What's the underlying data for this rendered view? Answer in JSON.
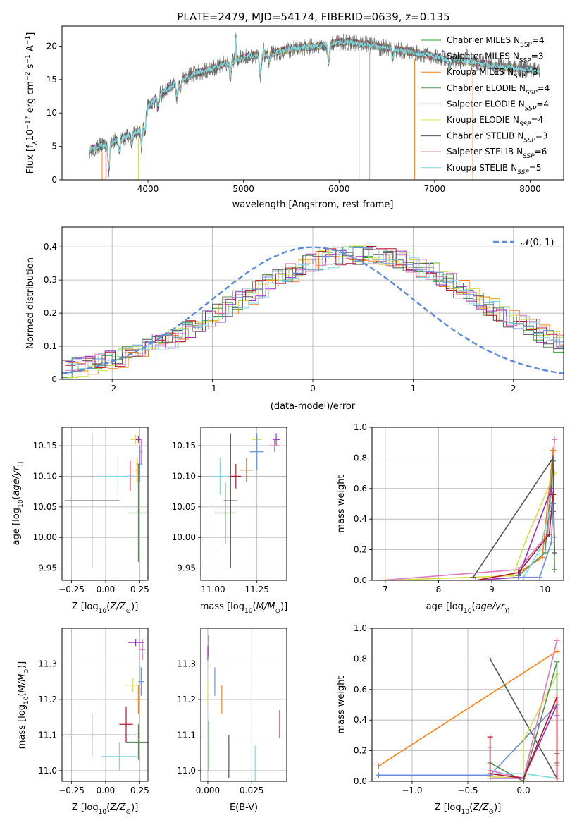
{
  "figure_title": "PLATE=2479, MJD=54174, FIBERID=0639, z=0.135",
  "colors": {
    "c0": "#2ca02c",
    "c1": "#e377c2",
    "c2": "#ff7f0e",
    "c3": "#5a8f5a",
    "c4": "#9b30c0",
    "c5": "#d4e04a",
    "c6": "#555555",
    "c7": "#b2182b",
    "c8": "#80d8e0",
    "c9": "#6a8fd8",
    "gauss": "#5b8bd8",
    "grid": "#b0b0b0"
  },
  "chart_data": [
    {
      "id": "spectrum",
      "type": "line",
      "title": "",
      "xlabel": "wavelength [Angstrom, rest frame]",
      "ylabel_parts": [
        "Flux [f",
        "λ",
        "10",
        "−17",
        " erg cm",
        "−2",
        " s",
        "−1",
        " A",
        "−1",
        "]"
      ],
      "xlim": [
        3100,
        8350
      ],
      "ylim": [
        0,
        23
      ],
      "xticks": [
        4000,
        5000,
        6000,
        7000,
        8000
      ],
      "yticks": [
        0,
        5,
        10,
        15,
        20
      ],
      "grid": false,
      "legend_position": "upper right",
      "series": [
        {
          "name": "Chabrier MILES",
          "n_ssp": "4",
          "color": "#2ca02c"
        },
        {
          "name": "Salpeter MILES",
          "n_ssp": "3",
          "color": "#e377c2"
        },
        {
          "name": "Kroupa MILES",
          "n_ssp": "3",
          "color": "#ff7f0e"
        },
        {
          "name": "Chabrier ELODIE",
          "n_ssp": "4",
          "color": "#5a8f5a"
        },
        {
          "name": "Salpeter ELODIE",
          "n_ssp": "4",
          "color": "#9b30c0"
        },
        {
          "name": "Kroupa ELODIE",
          "n_ssp": "4",
          "color": "#d4e04a"
        },
        {
          "name": "Chabrier STELIB",
          "n_ssp": "3",
          "color": "#555555"
        },
        {
          "name": "Salpeter STELIB",
          "n_ssp": "6",
          "color": "#b2182b"
        },
        {
          "name": "Kroupa STELIB",
          "n_ssp": "5",
          "color": "#80d8e0"
        }
      ],
      "n_ssp_label": "N",
      "n_ssp_sub": "SSP",
      "n_ssp_sub_italic": "SSP",
      "continuum_x": [
        3390,
        3500,
        3600,
        3700,
        3800,
        3900,
        3950,
        4000,
        4100,
        4200,
        4300,
        4400,
        4500,
        4600,
        4700,
        4800,
        4900,
        5000,
        5100,
        5200,
        5300,
        5400,
        5500,
        5600,
        5700,
        5800,
        5900,
        6000,
        6100,
        6200,
        6300,
        6400,
        6500,
        6600,
        6700,
        6800,
        6900,
        7000,
        7100,
        7200,
        7300,
        7400,
        7500,
        7600,
        7700,
        7800,
        7900,
        8000,
        8100
      ],
      "continuum_y": [
        4.5,
        5.0,
        5.5,
        6.0,
        6.5,
        7.2,
        8.5,
        11.0,
        12.5,
        13.5,
        14.5,
        15.3,
        16.0,
        16.3,
        16.8,
        17.3,
        17.8,
        18.3,
        18.6,
        18.6,
        18.9,
        19.3,
        19.6,
        19.8,
        19.9,
        20.0,
        20.3,
        20.6,
        20.6,
        20.4,
        20.2,
        19.9,
        19.7,
        19.5,
        19.2,
        19.0,
        18.7,
        18.4,
        18.1,
        17.9,
        17.8,
        17.6,
        17.4,
        17.1,
        16.9,
        16.8,
        16.6,
        16.5,
        16.2
      ],
      "dips": [
        [
          3590,
          -4.5
        ],
        [
          3700,
          -2.0
        ],
        [
          3830,
          -1.5
        ],
        [
          3933,
          -3.0
        ],
        [
          3968,
          -2.5
        ],
        [
          4102,
          -2.0
        ],
        [
          4305,
          -2.5
        ],
        [
          4340,
          -1.5
        ],
        [
          4861,
          -2.0
        ],
        [
          5175,
          -3.5
        ],
        [
          5270,
          -1.2
        ],
        [
          5890,
          -3.0
        ],
        [
          6563,
          -1.5
        ],
        [
          7160,
          -1.2
        ]
      ],
      "spikes": [
        [
          4920,
          4.0
        ],
        [
          5210,
          1.5
        ],
        [
          7340,
          1.5
        ]
      ],
      "vlines_x": [
        3520,
        3560,
        3900,
        6210,
        6320,
        6790,
        7400
      ],
      "vline_colors": [
        "#ff7f0e",
        "#b2182b",
        "#d4e04a",
        "#b0b0b0",
        "#b0b0b0",
        "#ff7f0e",
        "#ff7f0e"
      ]
    },
    {
      "id": "residuals",
      "type": "histogram",
      "title": "",
      "xlabel": "(data-model)/error",
      "ylabel": "Normed distribution",
      "xlim": [
        -2.5,
        2.5
      ],
      "ylim": [
        0,
        0.46
      ],
      "xticks": [
        -2,
        -1,
        0,
        1,
        2
      ],
      "yticks": [
        0.0,
        0.1,
        0.2,
        0.3,
        0.4
      ],
      "grid": true,
      "legend_position": "upper right",
      "legend_label": "𝒩(0, 1)",
      "bin_width": 0.1,
      "bin_start": -2.5,
      "shape": [
        0.035,
        0.039,
        0.045,
        0.051,
        0.058,
        0.066,
        0.075,
        0.085,
        0.097,
        0.109,
        0.122,
        0.137,
        0.152,
        0.168,
        0.185,
        0.202,
        0.22,
        0.238,
        0.256,
        0.274,
        0.291,
        0.308,
        0.323,
        0.337,
        0.349,
        0.359,
        0.367,
        0.372,
        0.375,
        0.376,
        0.375,
        0.372,
        0.367,
        0.359,
        0.349,
        0.337,
        0.323,
        0.308,
        0.291,
        0.274,
        0.256,
        0.238,
        0.22,
        0.202,
        0.185,
        0.168,
        0.152,
        0.137,
        0.122,
        0.109
      ],
      "jitter_seed": 7,
      "jitter_amp": 0.03
    },
    {
      "id": "age_vs_Z",
      "type": "errorbar",
      "title": "",
      "xlabel_parts": [
        "Z [log",
        "10",
        "(",
        "Z/Z",
        "⊙",
        ")]"
      ],
      "ylabel_parts": [
        "age  [log",
        "10",
        "(",
        "age/yr",
        ")]"
      ],
      "xlim": [
        -0.32,
        0.31
      ],
      "ylim": [
        9.93,
        10.18
      ],
      "xticks": [
        -0.25,
        0.0,
        0.25
      ],
      "xticklabels": [
        "−0.25",
        "0.00",
        "0.25"
      ],
      "yticks": [
        9.95,
        10.0,
        10.05,
        10.1,
        10.15
      ],
      "yticklabels": [
        "9.95",
        "10.00",
        "10.05",
        "10.10",
        "10.15"
      ],
      "grid": true,
      "points": [
        {
          "x": 0.22,
          "y": 10.16,
          "xerr": 0.04,
          "yerr": 0.008,
          "c": "#d4e04a"
        },
        {
          "x": 0.26,
          "y": 10.14,
          "xerr": 0.01,
          "yerr": 0.02,
          "c": "#e377c2"
        },
        {
          "x": 0.24,
          "y": 10.16,
          "xerr": 0.02,
          "yerr": 0.005,
          "c": "#9b30c0"
        },
        {
          "x": 0.25,
          "y": 10.12,
          "xerr": 0.02,
          "yerr": 0.03,
          "c": "#6a8fd8"
        },
        {
          "x": 0.23,
          "y": 10.11,
          "xerr": 0.02,
          "yerr": 0.02,
          "c": "#ff7f0e"
        },
        {
          "x": 0.18,
          "y": 10.1,
          "xerr": 0.03,
          "yerr": 0.025,
          "c": "#b2182b"
        },
        {
          "x": 0.09,
          "y": 10.1,
          "xerr": 0.13,
          "yerr": 0.03,
          "c": "#80d8e0"
        },
        {
          "x": 0.24,
          "y": 10.04,
          "xerr": 0.08,
          "yerr": 0.08,
          "c": "#5a8f5a"
        },
        {
          "x": -0.1,
          "y": 10.06,
          "xerr": 0.2,
          "yerr": 0.11,
          "c": "#555555"
        }
      ]
    },
    {
      "id": "age_vs_mass",
      "type": "errorbar",
      "title": "",
      "xlabel_parts": [
        "mass [log",
        "10",
        "(",
        "M/M",
        "⊙",
        ")]"
      ],
      "ylabel_parts": [],
      "xlim": [
        10.93,
        11.42
      ],
      "ylim": [
        9.93,
        10.18
      ],
      "xticks": [
        11.0,
        11.25
      ],
      "xticklabels": [
        "11.00",
        "11.25"
      ],
      "yticks": [
        9.95,
        10.0,
        10.05,
        10.1,
        10.15
      ],
      "yticklabels": [
        "9.95",
        "10.00",
        "10.05",
        "10.10",
        "10.15"
      ],
      "grid": true,
      "points": [
        {
          "x": 11.36,
          "y": 10.16,
          "xerr": 0.02,
          "yerr": 0.01,
          "c": "#9b30c0"
        },
        {
          "x": 11.35,
          "y": 10.15,
          "xerr": 0.03,
          "yerr": 0.01,
          "c": "#e377c2"
        },
        {
          "x": 11.25,
          "y": 10.16,
          "xerr": 0.03,
          "yerr": 0.008,
          "c": "#d4e04a"
        },
        {
          "x": 11.25,
          "y": 10.14,
          "xerr": 0.04,
          "yerr": 0.03,
          "c": "#6a8fd8"
        },
        {
          "x": 11.19,
          "y": 10.11,
          "xerr": 0.04,
          "yerr": 0.02,
          "c": "#ff7f0e"
        },
        {
          "x": 11.13,
          "y": 10.1,
          "xerr": 0.03,
          "yerr": 0.02,
          "c": "#b2182b"
        },
        {
          "x": 11.04,
          "y": 10.1,
          "xerr": 0.04,
          "yerr": 0.03,
          "c": "#80d8e0"
        },
        {
          "x": 11.07,
          "y": 10.04,
          "xerr": 0.06,
          "yerr": 0.05,
          "c": "#5a8f5a"
        },
        {
          "x": 11.1,
          "y": 10.06,
          "xerr": 0.04,
          "yerr": 0.11,
          "c": "#555555"
        }
      ]
    },
    {
      "id": "weight_vs_age",
      "type": "line",
      "title": "",
      "xlabel_parts": [
        "age  [log",
        "10",
        "(",
        "age/yr",
        ")]"
      ],
      "ylabel": "mass weight",
      "xlim": [
        6.75,
        10.35
      ],
      "ylim": [
        0,
        1
      ],
      "xticks": [
        7,
        8,
        9,
        10
      ],
      "xticklabels": [
        "7",
        "8",
        "9",
        "10"
      ],
      "yticks": [
        0.0,
        0.2,
        0.4,
        0.6,
        0.8,
        1.0
      ],
      "yticklabels": [
        "0.0",
        "0.2",
        "0.4",
        "0.6",
        "0.8",
        "1.0"
      ],
      "grid": true,
      "series": [
        {
          "c": "#e377c2",
          "x": [
            6.9,
            9.5,
            10.05,
            10.18
          ],
          "y": [
            0.0,
            0.07,
            0.3,
            0.92
          ]
        },
        {
          "c": "#ff7f0e",
          "x": [
            9.5,
            9.95,
            10.15
          ],
          "y": [
            0.05,
            0.15,
            0.85
          ]
        },
        {
          "c": "#d4e04a",
          "x": [
            7.0,
            9.4,
            9.65,
            10.18
          ],
          "y": [
            0.0,
            0.03,
            0.27,
            0.7
          ]
        },
        {
          "c": "#5a8f5a",
          "x": [
            9.5,
            10.0,
            10.15,
            10.18
          ],
          "y": [
            0.03,
            0.18,
            0.78,
            0.07
          ]
        },
        {
          "c": "#9b30c0",
          "x": [
            8.7,
            9.5,
            10.12,
            10.15
          ],
          "y": [
            0.0,
            0.02,
            0.6,
            0.45
          ]
        },
        {
          "c": "#80d8e0",
          "x": [
            9.6,
            9.9,
            10.12,
            10.18
          ],
          "y": [
            0.02,
            0.2,
            0.5,
            0.28
          ]
        },
        {
          "c": "#6a8fd8",
          "x": [
            9.5,
            9.9,
            10.12,
            10.15
          ],
          "y": [
            0.02,
            0.02,
            0.25,
            0.5
          ]
        },
        {
          "c": "#b2182b",
          "x": [
            8.7,
            9.5,
            10.08,
            10.15
          ],
          "y": [
            0.0,
            0.05,
            0.3,
            0.56
          ]
        },
        {
          "c": "#555555",
          "x": [
            8.65,
            10.15,
            10.18
          ],
          "y": [
            0.02,
            0.8,
            0.18
          ]
        }
      ]
    },
    {
      "id": "mass_vs_Z",
      "type": "errorbar",
      "title": "",
      "xlabel_parts": [
        "Z [log",
        "10",
        "(",
        "Z/Z",
        "⊙",
        ")]"
      ],
      "ylabel_parts": [
        "mass [log",
        "10",
        "(",
        "M/M",
        "⊙",
        ")]"
      ],
      "xlim": [
        -0.32,
        0.31
      ],
      "ylim": [
        10.97,
        11.4
      ],
      "xticks": [
        -0.25,
        0.0,
        0.25
      ],
      "xticklabels": [
        "−0.25",
        "0.00",
        "0.25"
      ],
      "yticks": [
        11.0,
        11.1,
        11.2,
        11.3
      ],
      "yticklabels": [
        "11.0",
        "11.1",
        "11.2",
        "11.3"
      ],
      "grid": true,
      "points": [
        {
          "x": 0.22,
          "y": 11.36,
          "xerr": 0.06,
          "yerr": 0.01,
          "c": "#9b30c0"
        },
        {
          "x": 0.27,
          "y": 11.34,
          "xerr": 0.02,
          "yerr": 0.03,
          "c": "#e377c2"
        },
        {
          "x": 0.26,
          "y": 11.25,
          "xerr": 0.02,
          "yerr": 0.04,
          "c": "#6a8fd8"
        },
        {
          "x": 0.2,
          "y": 11.24,
          "xerr": 0.05,
          "yerr": 0.02,
          "c": "#d4e04a"
        },
        {
          "x": 0.24,
          "y": 11.2,
          "xerr": 0.02,
          "yerr": 0.04,
          "c": "#ff7f0e"
        },
        {
          "x": 0.15,
          "y": 11.13,
          "xerr": 0.05,
          "yerr": 0.05,
          "c": "#b2182b"
        },
        {
          "x": 0.24,
          "y": 11.08,
          "xerr": 0.09,
          "yerr": 0.05,
          "c": "#5a8f5a"
        },
        {
          "x": 0.1,
          "y": 11.04,
          "xerr": 0.13,
          "yerr": 0.04,
          "c": "#80d8e0"
        },
        {
          "x": -0.1,
          "y": 11.1,
          "xerr": 0.34,
          "yerr": 0.06,
          "c": "#555555"
        }
      ]
    },
    {
      "id": "mass_vs_ebv",
      "type": "errorbar",
      "title": "",
      "xlabel": "E(B-V)",
      "xlim": [
        -0.004,
        0.045
      ],
      "ylim": [
        10.97,
        11.4
      ],
      "xticks": [
        0.0,
        0.025
      ],
      "xticklabels": [
        "0.000",
        "0.025"
      ],
      "yticks": [
        11.0,
        11.1,
        11.2,
        11.3
      ],
      "yticklabels": [
        "11.0",
        "11.1",
        "11.2",
        "11.3"
      ],
      "grid": true,
      "points": [
        {
          "x": 0.0002,
          "y": 11.35,
          "xerr": 0.0,
          "yerr": 0.03,
          "c": "#e377c2"
        },
        {
          "x": 0.0,
          "y": 11.33,
          "xerr": 0.0,
          "yerr": 0.02,
          "c": "#9b30c0"
        },
        {
          "x": 0.004,
          "y": 11.25,
          "xerr": 0.0,
          "yerr": 0.04,
          "c": "#6a8fd8"
        },
        {
          "x": 0.0,
          "y": 11.22,
          "xerr": 0.0,
          "yerr": 0.03,
          "c": "#d4e04a"
        },
        {
          "x": 0.008,
          "y": 11.2,
          "xerr": 0.0,
          "yerr": 0.04,
          "c": "#ff7f0e"
        },
        {
          "x": 0.0005,
          "y": 11.07,
          "xerr": 0.0,
          "yerr": 0.07,
          "c": "#5a8f5a"
        },
        {
          "x": 0.012,
          "y": 11.04,
          "xerr": 0.0,
          "yerr": 0.06,
          "c": "#555555"
        },
        {
          "x": 0.027,
          "y": 11.02,
          "xerr": 0.0,
          "yerr": 0.05,
          "c": "#80d8e0"
        },
        {
          "x": 0.041,
          "y": 11.13,
          "xerr": 0.0,
          "yerr": 0.04,
          "c": "#b2182b"
        }
      ]
    },
    {
      "id": "weight_vs_Z",
      "type": "line",
      "title": "",
      "xlabel_parts": [
        "Z [log",
        "10",
        "(",
        "Z/Z",
        "⊙",
        ")]"
      ],
      "ylabel": "mass weight",
      "xlim": [
        -1.36,
        0.36
      ],
      "ylim": [
        0,
        1
      ],
      "xticks": [
        -1.0,
        -0.5,
        0.0
      ],
      "xticklabels": [
        "−1.0",
        "−0.5",
        "0.0"
      ],
      "yticks": [
        0.0,
        0.2,
        0.4,
        0.6,
        0.8,
        1.0
      ],
      "yticklabels": [
        "0.0",
        "0.2",
        "0.4",
        "0.6",
        "0.8",
        "1.0"
      ],
      "grid": true,
      "series": [
        {
          "c": "#ff7f0e",
          "x": [
            -1.3,
            0.3
          ],
          "y": [
            0.1,
            0.85
          ]
        },
        {
          "c": "#6a8fd8",
          "x": [
            -1.3,
            -0.3,
            0.3,
            0.3
          ],
          "y": [
            0.04,
            0.04,
            0.5,
            0.43
          ]
        },
        {
          "c": "#555555",
          "x": [
            -0.3,
            0.3,
            0.3,
            0.3
          ],
          "y": [
            0.8,
            0.02,
            0.18,
            0.1
          ]
        },
        {
          "c": "#e377c2",
          "x": [
            -0.3,
            0.0,
            0.3
          ],
          "y": [
            0.07,
            0.02,
            0.92
          ]
        },
        {
          "c": "#d4e04a",
          "x": [
            -0.3,
            0.0,
            0.0,
            0.3
          ],
          "y": [
            0.03,
            0.02,
            0.27,
            0.7
          ]
        },
        {
          "c": "#5a8f5a",
          "x": [
            -0.3,
            0.0,
            0.3,
            0.3
          ],
          "y": [
            0.12,
            0.0,
            0.78,
            0.12
          ]
        },
        {
          "c": "#9b30c0",
          "x": [
            -0.3,
            0.0,
            0.3
          ],
          "y": [
            0.02,
            0.02,
            0.5
          ]
        },
        {
          "c": "#80d8e0",
          "x": [
            -0.3,
            -0.3,
            0.0,
            0.3,
            0.3
          ],
          "y": [
            0.22,
            0.05,
            0.05,
            0.02,
            0.5
          ]
        },
        {
          "c": "#b2182b",
          "x": [
            -0.3,
            -0.3,
            0.0,
            0.3,
            0.3
          ],
          "y": [
            0.29,
            0.05,
            0.02,
            0.55,
            0.02
          ]
        }
      ]
    }
  ]
}
